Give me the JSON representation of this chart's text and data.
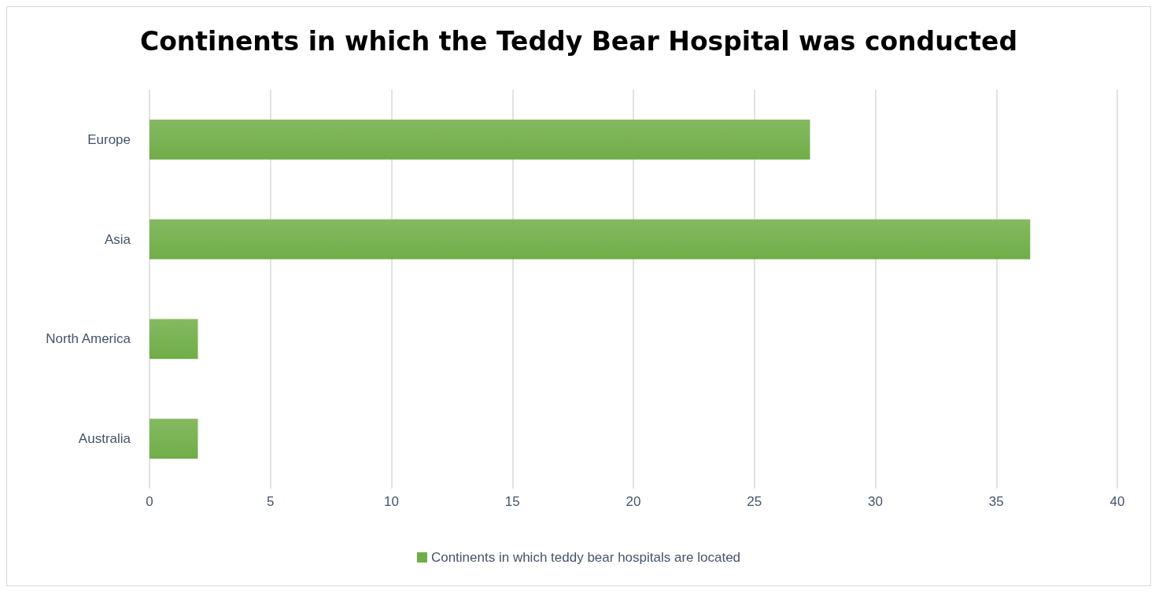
{
  "chart_data": {
    "type": "bar",
    "orientation": "horizontal",
    "title": "Continents in which the Teddy Bear Hospital was conducted",
    "categories": [
      "Europe",
      "Asia",
      "North America",
      "Australia"
    ],
    "series": [
      {
        "name": "Continents in which teddy bear hospitals are located",
        "color": "#70ad47",
        "values": [
          27.3,
          36.4,
          2,
          2
        ]
      }
    ],
    "xlim": [
      0,
      40
    ],
    "xticks": [
      0,
      5,
      10,
      15,
      20,
      25,
      30,
      35,
      40
    ],
    "grid": "x",
    "legend": "bottom"
  }
}
